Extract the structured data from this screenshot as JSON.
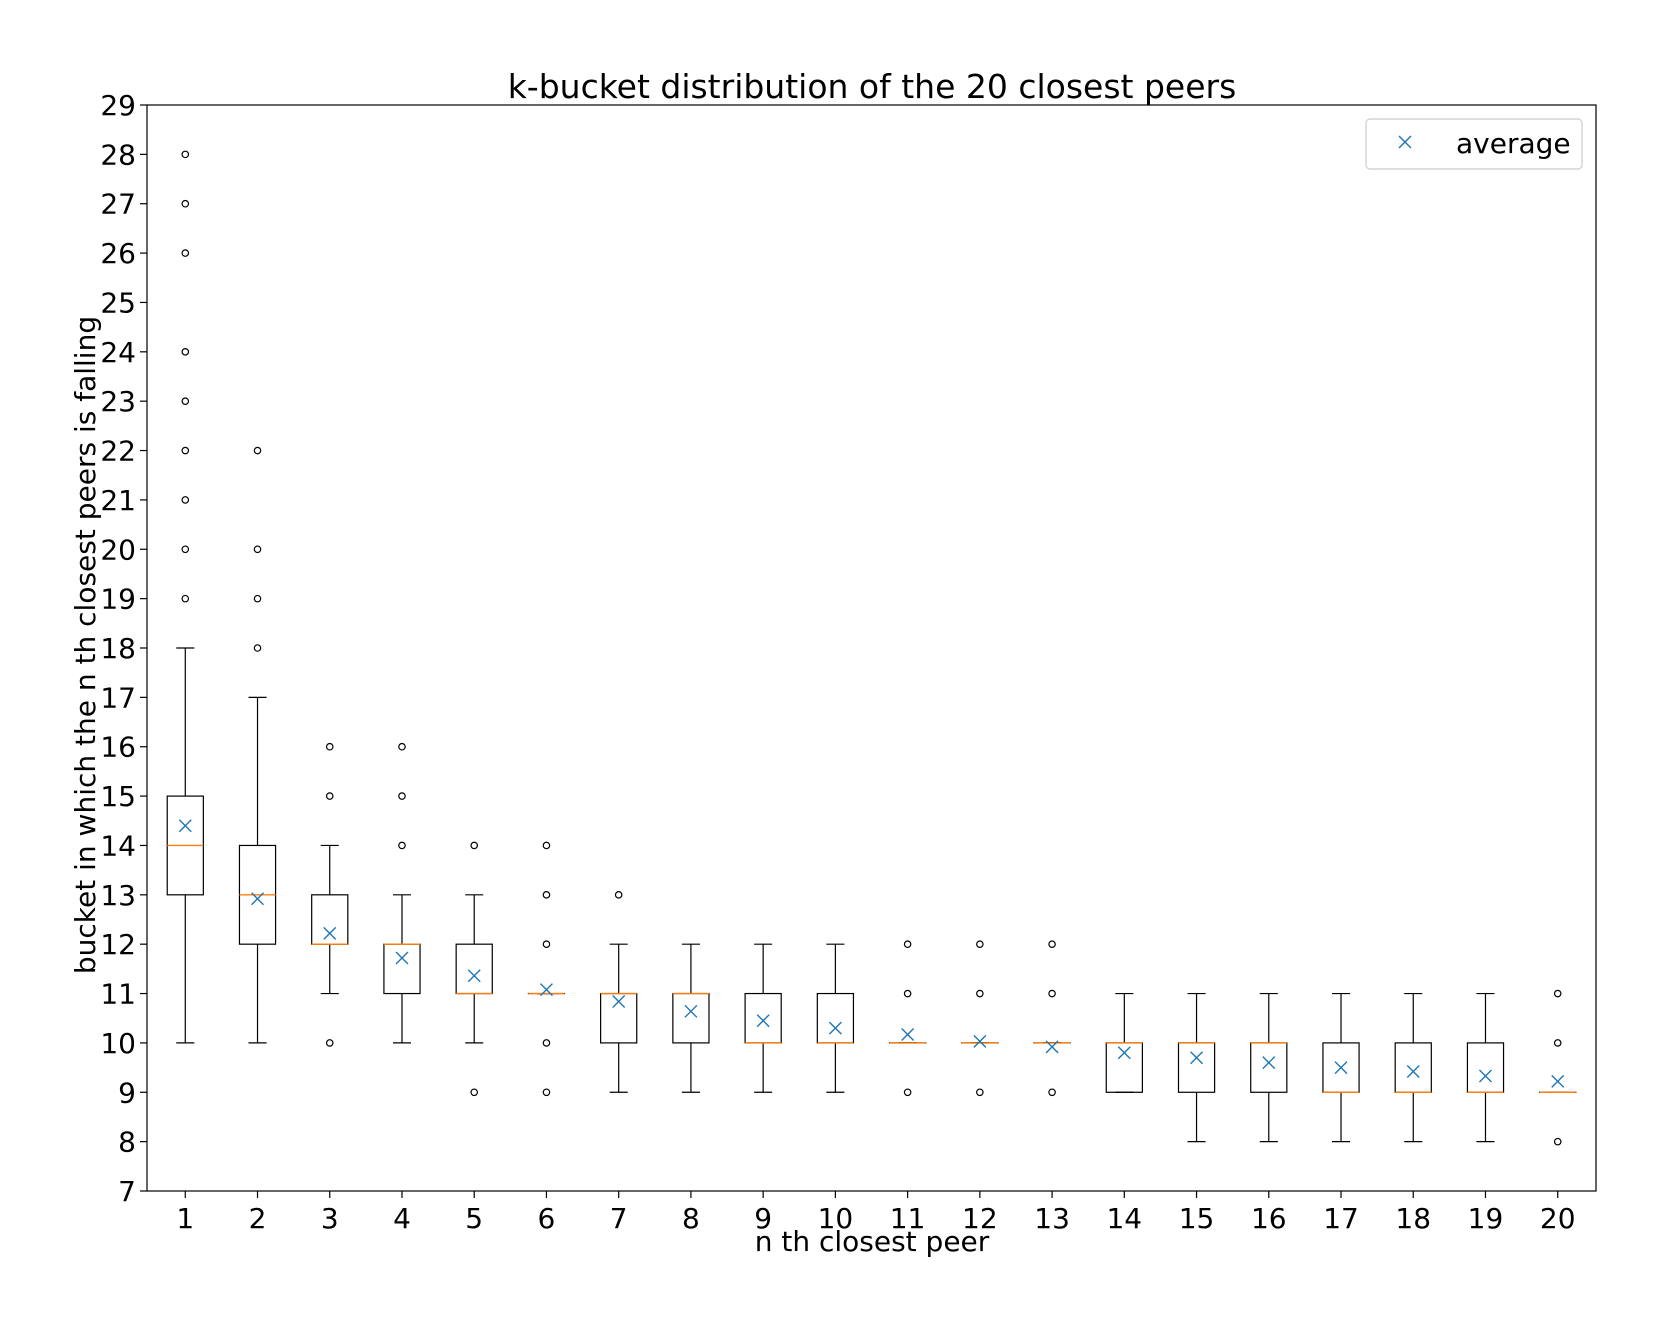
{
  "chart_data": {
    "type": "box",
    "title": "k-bucket distribution of the 20 closest peers",
    "xlabel": "n th closest peer",
    "ylabel": "bucket in which the n th closest peers is falling",
    "ylim": [
      7,
      29
    ],
    "yticks": [
      7,
      8,
      9,
      10,
      11,
      12,
      13,
      14,
      15,
      16,
      17,
      18,
      19,
      20,
      21,
      22,
      23,
      24,
      25,
      26,
      27,
      28,
      29
    ],
    "categories": [
      "1",
      "2",
      "3",
      "4",
      "5",
      "6",
      "7",
      "8",
      "9",
      "10",
      "11",
      "12",
      "13",
      "14",
      "15",
      "16",
      "17",
      "18",
      "19",
      "20"
    ],
    "grid": false,
    "legend": {
      "position": "top-right",
      "entries": [
        {
          "label": "average",
          "marker": "x",
          "color": "#1f77b4"
        }
      ]
    },
    "colors": {
      "box": "#000000",
      "median": "#ff7f0e",
      "mean": "#1f77b4",
      "flier": "#000000"
    },
    "boxes": [
      {
        "category": "1",
        "whislo": 10,
        "q1": 13,
        "med": 14,
        "q3": 15,
        "whishi": 18,
        "mean": 14.4,
        "fliers": [
          19,
          20,
          21,
          22,
          23,
          24,
          26,
          27,
          28
        ]
      },
      {
        "category": "2",
        "whislo": 10,
        "q1": 12,
        "med": 13,
        "q3": 14,
        "whishi": 17,
        "mean": 12.92,
        "fliers": [
          18,
          19,
          20,
          22
        ]
      },
      {
        "category": "3",
        "whislo": 11,
        "q1": 12,
        "med": 12,
        "q3": 13,
        "whishi": 14,
        "mean": 12.22,
        "fliers": [
          10,
          15,
          16
        ]
      },
      {
        "category": "4",
        "whislo": 10,
        "q1": 11,
        "med": 12,
        "q3": 12,
        "whishi": 13,
        "mean": 11.72,
        "fliers": [
          14,
          15,
          16
        ]
      },
      {
        "category": "5",
        "whislo": 10,
        "q1": 11,
        "med": 11,
        "q3": 12,
        "whishi": 13,
        "mean": 11.36,
        "fliers": [
          9,
          14
        ]
      },
      {
        "category": "6",
        "whislo": 11,
        "q1": 11,
        "med": 11,
        "q3": 11,
        "whishi": 11,
        "mean": 11.08,
        "fliers": [
          9,
          10,
          12,
          13,
          14
        ]
      },
      {
        "category": "7",
        "whislo": 9,
        "q1": 10,
        "med": 11,
        "q3": 11,
        "whishi": 12,
        "mean": 10.84,
        "fliers": [
          13
        ]
      },
      {
        "category": "8",
        "whislo": 9,
        "q1": 10,
        "med": 11,
        "q3": 11,
        "whishi": 12,
        "mean": 10.64,
        "fliers": []
      },
      {
        "category": "9",
        "whislo": 9,
        "q1": 10,
        "med": 10,
        "q3": 11,
        "whishi": 12,
        "mean": 10.45,
        "fliers": []
      },
      {
        "category": "10",
        "whislo": 9,
        "q1": 10,
        "med": 10,
        "q3": 11,
        "whishi": 12,
        "mean": 10.3,
        "fliers": []
      },
      {
        "category": "11",
        "whislo": 10,
        "q1": 10,
        "med": 10,
        "q3": 10,
        "whishi": 10,
        "mean": 10.17,
        "fliers": [
          9,
          11,
          12
        ]
      },
      {
        "category": "12",
        "whislo": 10,
        "q1": 10,
        "med": 10,
        "q3": 10,
        "whishi": 10,
        "mean": 10.03,
        "fliers": [
          9,
          11,
          12
        ]
      },
      {
        "category": "13",
        "whislo": 10,
        "q1": 10,
        "med": 10,
        "q3": 10,
        "whishi": 10,
        "mean": 9.92,
        "fliers": [
          9,
          11,
          12
        ]
      },
      {
        "category": "14",
        "whislo": 9,
        "q1": 9,
        "med": 10,
        "q3": 10,
        "whishi": 11,
        "mean": 9.8,
        "fliers": []
      },
      {
        "category": "15",
        "whislo": 8,
        "q1": 9,
        "med": 10,
        "q3": 10,
        "whishi": 11,
        "mean": 9.7,
        "fliers": []
      },
      {
        "category": "16",
        "whislo": 8,
        "q1": 9,
        "med": 10,
        "q3": 10,
        "whishi": 11,
        "mean": 9.6,
        "fliers": []
      },
      {
        "category": "17",
        "whislo": 8,
        "q1": 9,
        "med": 9,
        "q3": 10,
        "whishi": 11,
        "mean": 9.5,
        "fliers": []
      },
      {
        "category": "18",
        "whislo": 8,
        "q1": 9,
        "med": 9,
        "q3": 10,
        "whishi": 11,
        "mean": 9.42,
        "fliers": []
      },
      {
        "category": "19",
        "whislo": 8,
        "q1": 9,
        "med": 9,
        "q3": 10,
        "whishi": 11,
        "mean": 9.33,
        "fliers": []
      },
      {
        "category": "20",
        "whislo": 9,
        "q1": 9,
        "med": 9,
        "q3": 9,
        "whishi": 9,
        "mean": 9.22,
        "fliers": [
          8,
          10,
          11
        ]
      }
    ]
  }
}
